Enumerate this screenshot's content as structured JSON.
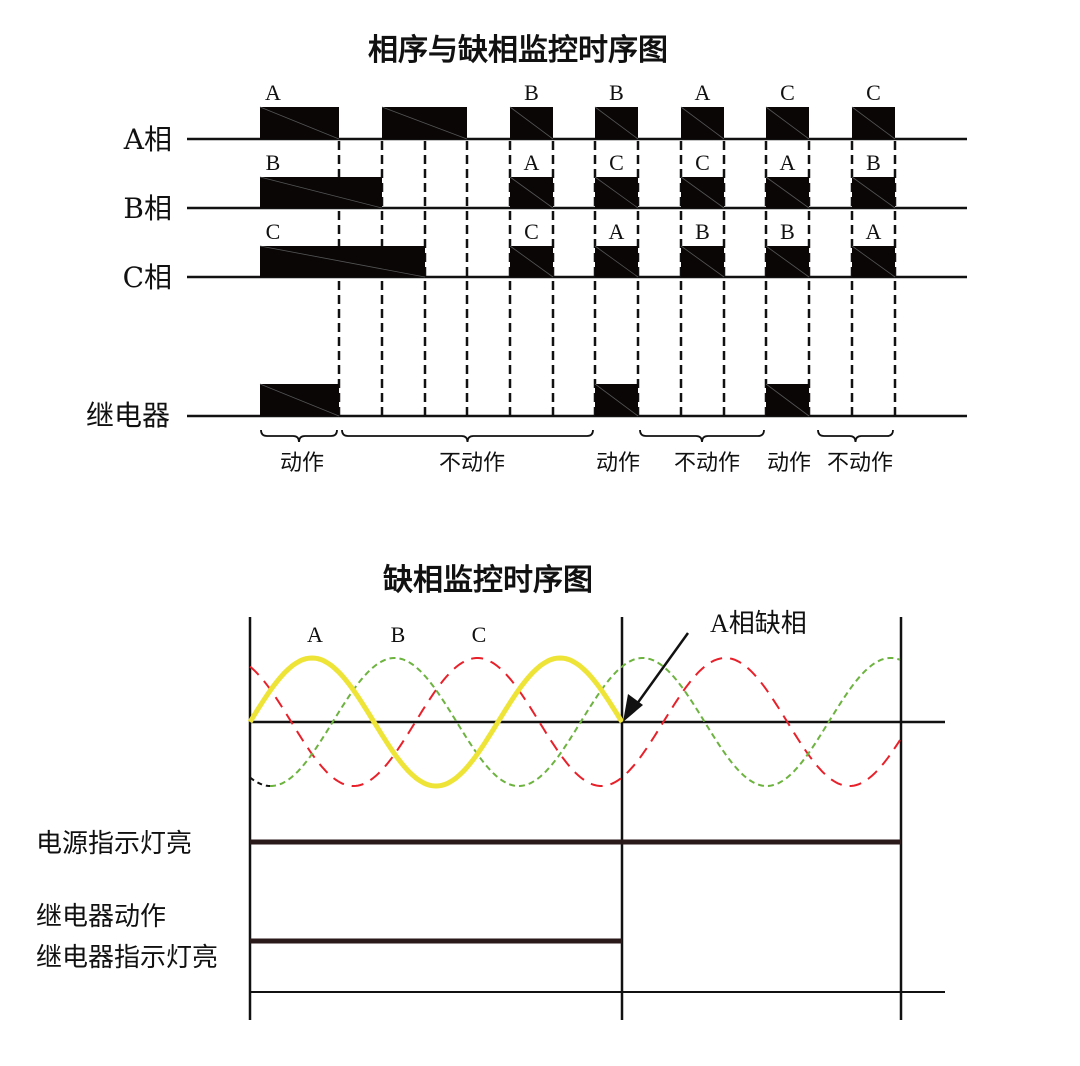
{
  "top": {
    "title": "相序与缺相监控时序图",
    "rows": [
      "A相",
      "B相",
      "C相",
      "继电器"
    ],
    "box_labels": {
      "A": [
        "A",
        "B",
        "B",
        "A",
        "C",
        "C"
      ],
      "B": [
        "B",
        "A",
        "C",
        "C",
        "A",
        "B"
      ],
      "C": [
        "C",
        "C",
        "A",
        "B",
        "B",
        "A"
      ]
    },
    "states": [
      "动作",
      "不动作",
      "动作",
      "不动作",
      "动作",
      "不动作"
    ]
  },
  "bottom": {
    "title": "缺相监控时序图",
    "phase_labels": [
      "A",
      "B",
      "C"
    ],
    "annotation": "A相缺相",
    "power_label": "电源指示灯亮",
    "relay_label_1": "继电器动作",
    "relay_label_2": "继电器指示灯亮",
    "colors": {
      "A": "#eee437",
      "B": "#6db33f",
      "C": "#e8202a",
      "bar": "#2a1a1a"
    }
  }
}
